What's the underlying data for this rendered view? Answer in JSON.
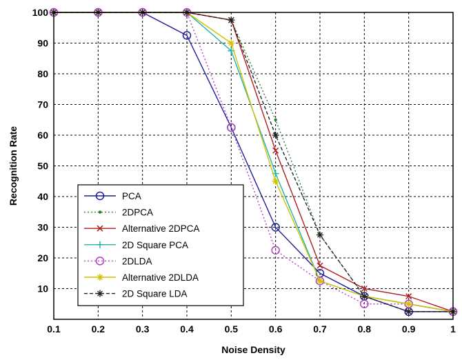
{
  "chart_data": {
    "type": "line",
    "title": "",
    "xlabel": "Noise Density",
    "ylabel": "Recognition Rate",
    "xlim": [
      0.1,
      1
    ],
    "ylim": [
      0,
      100
    ],
    "x_ticks": [
      "0.1",
      "0.2",
      "0.3",
      "0.4",
      "0.5",
      "0.6",
      "0.7",
      "0.8",
      "0.9",
      "1"
    ],
    "y_ticks": [
      "10",
      "20",
      "30",
      "40",
      "50",
      "60",
      "70",
      "80",
      "90",
      "100"
    ],
    "grid": true,
    "legend_position": "bottom-left",
    "x": [
      0.1,
      0.2,
      0.3,
      0.4,
      0.5,
      0.6,
      0.7,
      0.8,
      0.9,
      1.0
    ],
    "series": [
      {
        "name": "PCA",
        "color": "#1c1c9a",
        "dash": "solid",
        "marker": "circle",
        "values": [
          100,
          100,
          100,
          92.5,
          62.5,
          30,
          15,
          7.5,
          2.5,
          2.5
        ]
      },
      {
        "name": "2DPCA",
        "color": "#2e7d32",
        "dash": "dotted",
        "marker": "dot",
        "values": [
          100,
          100,
          100,
          100,
          97.5,
          65,
          27.5,
          7.5,
          5,
          2.5
        ]
      },
      {
        "name": "Alternative 2DPCA",
        "color": "#b01c1c",
        "dash": "solid",
        "marker": "x",
        "values": [
          100,
          100,
          100,
          100,
          97.5,
          55,
          17.5,
          10,
          7.5,
          2.5
        ]
      },
      {
        "name": "2D Square PCA",
        "color": "#20b2aa",
        "dash": "solid",
        "marker": "plus",
        "values": [
          100,
          100,
          100,
          100,
          87.5,
          47.5,
          12.5,
          7.5,
          5,
          2.5
        ]
      },
      {
        "name": "2DLDA",
        "color": "#b040c0",
        "dash": "dotted",
        "marker": "circle",
        "values": [
          100,
          100,
          100,
          100,
          62.5,
          22.5,
          12.5,
          5,
          5,
          2.5
        ]
      },
      {
        "name": "Alternative 2DLDA",
        "color": "#d4c000",
        "dash": "solid",
        "marker": "star",
        "values": [
          100,
          100,
          100,
          100,
          90,
          45,
          12.5,
          7.5,
          5,
          2.5
        ]
      },
      {
        "name": "2D Square LDA",
        "color": "#222222",
        "dash": "dashed",
        "marker": "star",
        "values": [
          100,
          100,
          100,
          100,
          97.5,
          60,
          27.5,
          7.5,
          2.5,
          2.5
        ]
      }
    ]
  }
}
